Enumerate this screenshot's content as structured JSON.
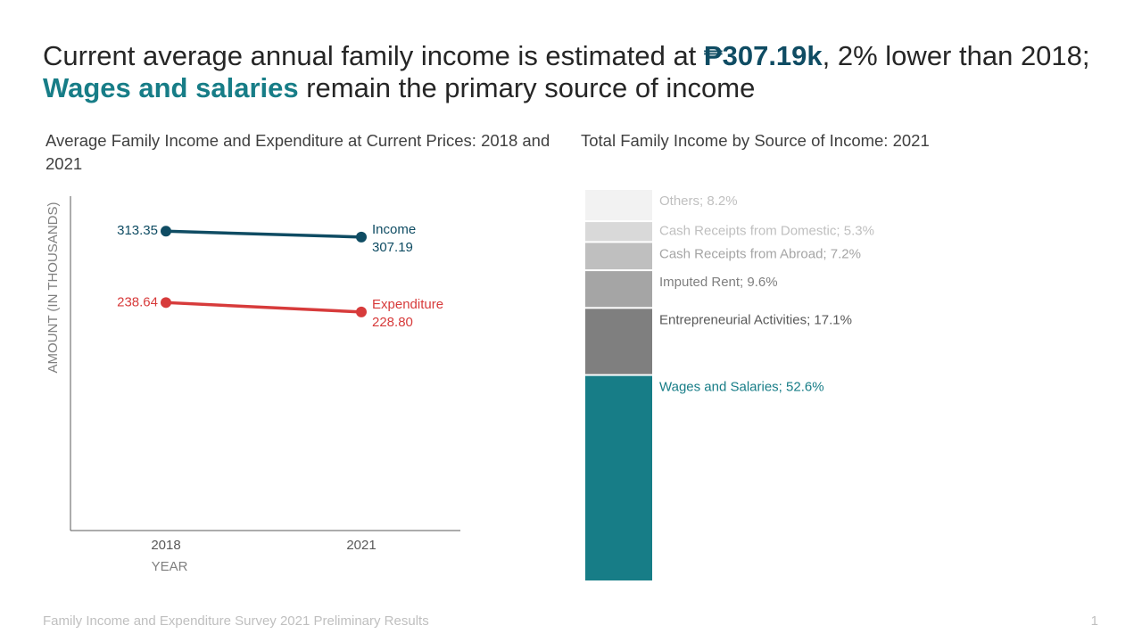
{
  "title_parts": [
    {
      "text": "Current average annual family income is estimated at "
    },
    {
      "text": "₱307.19k",
      "color": "#0f4c63",
      "bold": true
    },
    {
      "text": ", 2% lower than 2018; "
    },
    {
      "text": "Wages and salaries",
      "color": "#177d87",
      "bold": true
    },
    {
      "text": " remain the primary source of income"
    }
  ],
  "chart_data": [
    {
      "type": "line",
      "title": "Average Family Income and Expenditure at Current Prices: 2018 and 2021",
      "x_label": "YEAR",
      "y_label": "AMOUNT (IN THOUSANDS)",
      "categories": [
        "2018",
        "2021"
      ],
      "ylim": [
        0,
        350
      ],
      "series": [
        {
          "name": "Income",
          "color": "#0f4c63",
          "values": [
            313.35,
            307.19
          ],
          "value_labels": [
            "313.35",
            "307.19"
          ]
        },
        {
          "name": "Expenditure",
          "color": "#d73b3b",
          "values": [
            238.64,
            228.8
          ],
          "value_labels": [
            "238.64",
            "228.80"
          ]
        }
      ]
    },
    {
      "type": "stacked_bar",
      "title": "Total Family Income by Source of Income: 2021",
      "ylim": [
        0,
        100
      ],
      "segments": [
        {
          "label": "Wages and Salaries; 52.6%",
          "value": 52.6,
          "color": "#177d87",
          "label_color": "#177d87"
        },
        {
          "label": "Entrepreneurial Activities; 17.1%",
          "value": 17.1,
          "color": "#7f7f7f",
          "label_color": "#595959"
        },
        {
          "label": "Imputed Rent; 9.6%",
          "value": 9.6,
          "color": "#a5a5a5",
          "label_color": "#7f7f7f"
        },
        {
          "label": "Cash Receipts from Abroad; 7.2%",
          "value": 7.2,
          "color": "#bfbfbf",
          "label_color": "#a5a5a5"
        },
        {
          "label": "Cash Receipts from Domestic; 5.3%",
          "value": 5.3,
          "color": "#d9d9d9",
          "label_color": "#bfbfbf"
        },
        {
          "label": "Others; 8.2%",
          "value": 8.2,
          "color": "#f2f2f2",
          "label_color": "#bfbfbf"
        }
      ]
    }
  ],
  "footer": "Family Income and Expenditure Survey 2021 Preliminary Results",
  "page_number": "1"
}
